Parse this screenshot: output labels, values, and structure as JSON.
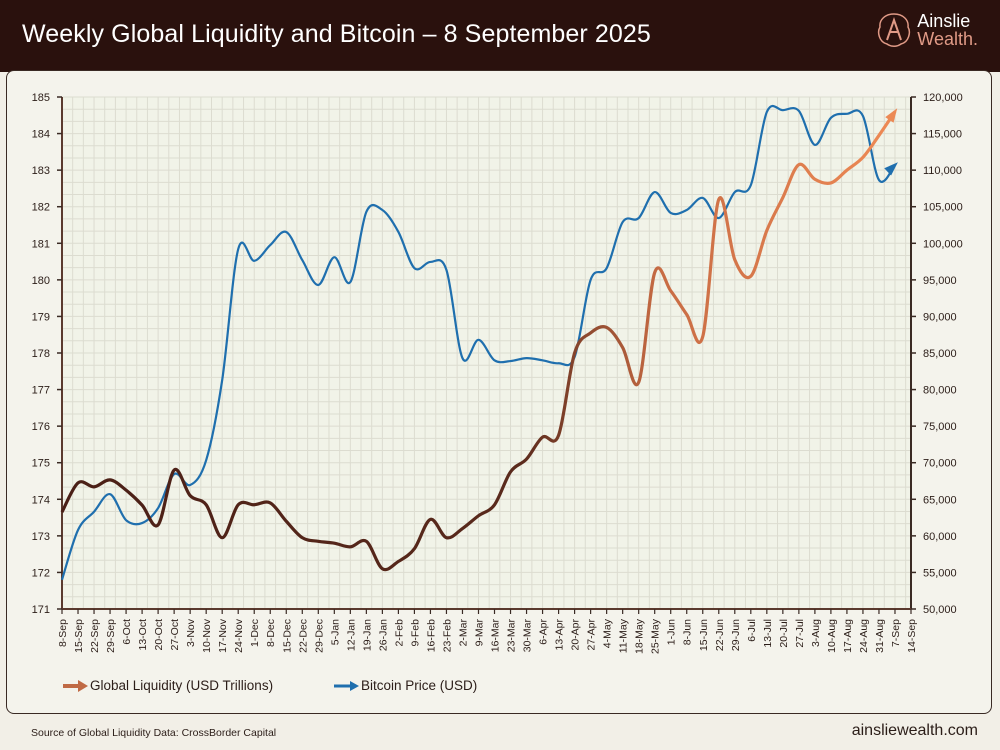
{
  "header": {
    "title": "Weekly Global Liquidity and Bitcoin – 8 September 2025"
  },
  "logo": {
    "line1": "Ainslie",
    "line2": "Wealth."
  },
  "footer": {
    "source": "Source of Global Liquidity Data: CrossBorder Capital",
    "site": "ainsliewealth.com"
  },
  "chart_data": {
    "type": "line",
    "title": "Weekly Global Liquidity and Bitcoin – 8 September 2025",
    "x_tick_labels": [
      "8-Sep",
      "15-Sep",
      "22-Sep",
      "29-Sep",
      "6-Oct",
      "13-Oct",
      "20-Oct",
      "27-Oct",
      "3-Nov",
      "10-Nov",
      "17-Nov",
      "24-Nov",
      "1-Dec",
      "8-Dec",
      "15-Dec",
      "22-Dec",
      "29-Dec",
      "5-Jan",
      "12-Jan",
      "19-Jan",
      "26-Jan",
      "2-Feb",
      "9-Feb",
      "16-Feb",
      "23-Feb",
      "2-Mar",
      "9-Mar",
      "16-Mar",
      "23-Mar",
      "30-Mar",
      "6-Apr",
      "13-Apr",
      "20-Apr",
      "27-Apr",
      "4-May",
      "11-May",
      "18-May",
      "25-May",
      "1-Jun",
      "8-Jun",
      "15-Jun",
      "22-Jun",
      "29-Jun",
      "6-Jul",
      "13-Jul",
      "20-Jul",
      "27-Jul",
      "3-Aug",
      "10-Aug",
      "17-Aug",
      "24-Aug",
      "31-Aug",
      "7-Sep",
      "14-Sep"
    ],
    "y_left": {
      "range": [
        171,
        185
      ],
      "ticks": [
        171,
        172,
        173,
        174,
        175,
        176,
        177,
        178,
        179,
        180,
        181,
        182,
        183,
        184,
        185
      ]
    },
    "y_right": {
      "range": [
        50000,
        120000
      ],
      "ticks": [
        "50,000",
        "55,000",
        "60,000",
        "65,000",
        "70,000",
        "75,000",
        "80,000",
        "85,000",
        "90,000",
        "95,000",
        "100,000",
        "105,000",
        "110,000",
        "115,000",
        "120,000"
      ]
    },
    "grid": true,
    "legend_placement": "bottom-left",
    "series": [
      {
        "name": "Global Liquidity (USD Trillions)",
        "axis": "left",
        "color_start": "#4a1f16",
        "color_end": "#ec8a55",
        "values": [
          173.65,
          174.45,
          174.34,
          174.53,
          174.25,
          173.84,
          173.3,
          174.8,
          174.1,
          173.85,
          172.95,
          173.85,
          173.85,
          173.9,
          173.4,
          172.95,
          172.85,
          172.8,
          172.7,
          172.85,
          172.1,
          172.3,
          172.65,
          173.45,
          172.95,
          173.2,
          173.55,
          173.85,
          174.75,
          175.1,
          175.7,
          175.75,
          178.0,
          178.55,
          178.7,
          178.15,
          177.2,
          180.2,
          179.7,
          179.05,
          178.45,
          182.2,
          180.55,
          180.1,
          181.35,
          182.25,
          183.15,
          182.75,
          182.65,
          183.0,
          183.35,
          183.95,
          184.6
        ]
      },
      {
        "name": "Bitcoin Price (USD)",
        "axis": "right",
        "color": "#1f6fae",
        "values": [
          54000,
          60800,
          63300,
          65700,
          62150,
          61750,
          63800,
          68450,
          66950,
          70350,
          81300,
          99200,
          97600,
          99750,
          101550,
          97700,
          94300,
          98100,
          94700,
          104300,
          104550,
          101550,
          96600,
          97450,
          96350,
          84300,
          86800,
          84000,
          83900,
          84300,
          84000,
          83600,
          84450,
          95000,
          96600,
          102900,
          103450,
          107000,
          104150,
          104550,
          106200,
          103450,
          107000,
          107950,
          117950,
          118200,
          118100,
          113450,
          117150,
          117700,
          117400,
          108650,
          110700
        ]
      }
    ]
  }
}
